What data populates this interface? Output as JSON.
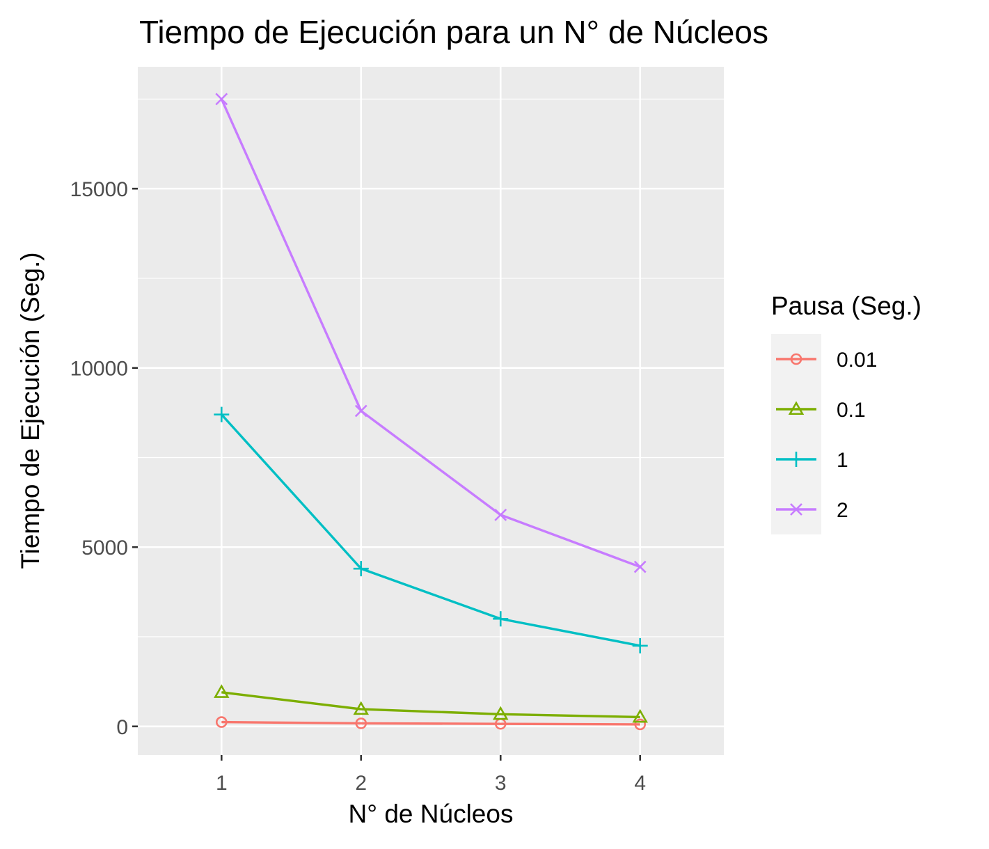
{
  "chart_data": {
    "type": "line",
    "title": "Tiempo de Ejecución para un N° de Núcleos",
    "xlabel": "N° de Núcleos",
    "ylabel": "Tiempo de Ejecución (Seg.)",
    "x": [
      1,
      2,
      3,
      4
    ],
    "x_tick_labels": [
      "1",
      "2",
      "3",
      "4"
    ],
    "xlim": [
      0.4,
      4.6
    ],
    "ylim": [
      -800,
      18400
    ],
    "y_ticks": [
      0,
      5000,
      10000,
      15000
    ],
    "y_tick_labels": [
      "0",
      "5000",
      "10000",
      "15000"
    ],
    "grid": true,
    "legend": {
      "title": "Pausa (Seg.)",
      "position": "right"
    },
    "series": [
      {
        "name": "0.01",
        "color": "#F8766D",
        "marker": "circle",
        "values": [
          120,
          85,
          70,
          55
        ]
      },
      {
        "name": "0.1",
        "color": "#7CAE00",
        "marker": "triangle",
        "values": [
          950,
          480,
          340,
          260
        ]
      },
      {
        "name": "1",
        "color": "#00BFC4",
        "marker": "plus",
        "values": [
          8700,
          4400,
          3000,
          2250
        ]
      },
      {
        "name": "2",
        "color": "#C77CFF",
        "marker": "cross",
        "values": [
          17500,
          8800,
          5900,
          4450
        ]
      }
    ]
  }
}
